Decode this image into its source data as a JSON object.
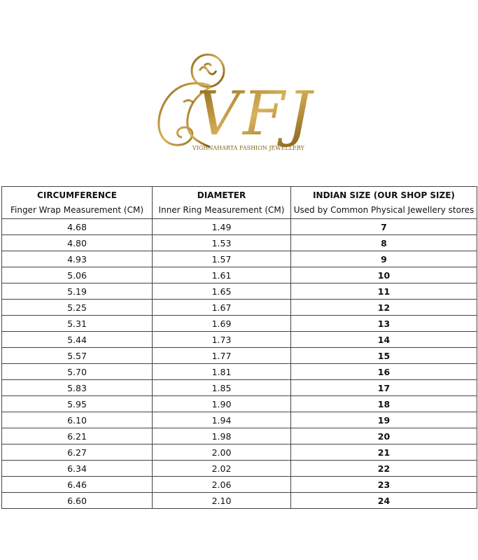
{
  "logo": {
    "mark": "VFJ",
    "name": "VIGHNAHARTA FASHION JEWELLERY"
  },
  "table": {
    "columns": [
      {
        "title": "CIRCUMFERENCE",
        "subtitle": "Finger Wrap Measurement (CM)"
      },
      {
        "title": "DIAMETER",
        "subtitle": "Inner Ring Measurement (CM)"
      },
      {
        "title": "INDIAN SIZE (OUR SHOP SIZE)",
        "subtitle": "Used by Common Physical Jewellery stores"
      }
    ],
    "rows": [
      [
        "4.68",
        "1.49",
        "7"
      ],
      [
        "4.80",
        "1.53",
        "8"
      ],
      [
        "4.93",
        "1.57",
        "9"
      ],
      [
        "5.06",
        "1.61",
        "10"
      ],
      [
        "5.19",
        "1.65",
        "11"
      ],
      [
        "5.25",
        "1.67",
        "12"
      ],
      [
        "5.31",
        "1.69",
        "13"
      ],
      [
        "5.44",
        "1.73",
        "14"
      ],
      [
        "5.57",
        "1.77",
        "15"
      ],
      [
        "5.70",
        "1.81",
        "16"
      ],
      [
        "5.83",
        "1.85",
        "17"
      ],
      [
        "5.95",
        "1.90",
        "18"
      ],
      [
        "6.10",
        "1.94",
        "19"
      ],
      [
        "6.21",
        "1.98",
        "20"
      ],
      [
        "6.27",
        "2.00",
        "21"
      ],
      [
        "6.34",
        "2.02",
        "22"
      ],
      [
        "6.46",
        "2.06",
        "23"
      ],
      [
        "6.60",
        "2.10",
        "24"
      ]
    ]
  }
}
